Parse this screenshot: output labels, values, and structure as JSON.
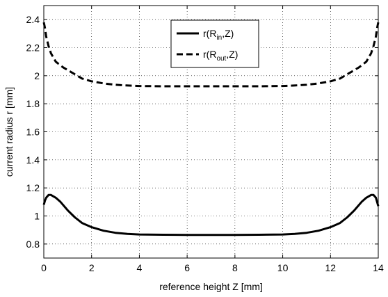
{
  "chart_data": {
    "type": "line",
    "title": "",
    "xlabel": "reference height Z [mm]",
    "ylabel": "current radius r [mm]",
    "xlim": [
      0,
      14
    ],
    "ylim": [
      0.7,
      2.5
    ],
    "xticks": [
      0,
      2,
      4,
      6,
      8,
      10,
      12,
      14
    ],
    "xtick_labels": [
      "0",
      "2",
      "4",
      "6",
      "8",
      "10",
      "12",
      "14"
    ],
    "yticks": [
      0.8,
      1.0,
      1.2,
      1.4,
      1.6,
      1.8,
      2.0,
      2.2,
      2.4
    ],
    "ytick_labels": [
      "0.8",
      "1",
      "1.2",
      "1.4",
      "1.6",
      "1.8",
      "2",
      "2.2",
      "2.4"
    ],
    "grid": true,
    "legend_position": "top-center",
    "series": [
      {
        "name": "r(R_in,Z)",
        "legend_main": "r(R",
        "legend_sub": "in",
        "legend_tail": ",Z)",
        "style": "solid",
        "color": "#000000",
        "x": [
          0,
          0.05,
          0.1,
          0.2,
          0.3,
          0.5,
          0.7,
          1.0,
          1.3,
          1.6,
          2.0,
          2.5,
          3.0,
          3.5,
          4.0,
          5.0,
          6.0,
          7.0,
          8.0,
          9.0,
          10.0,
          10.5,
          11.0,
          11.5,
          12.0,
          12.4,
          12.7,
          13.0,
          13.3,
          13.5,
          13.7,
          13.8,
          13.9,
          13.95,
          14.0
        ],
        "y": [
          1.08,
          1.11,
          1.13,
          1.15,
          1.15,
          1.13,
          1.1,
          1.04,
          0.99,
          0.95,
          0.92,
          0.895,
          0.88,
          0.872,
          0.868,
          0.866,
          0.865,
          0.865,
          0.865,
          0.866,
          0.868,
          0.872,
          0.88,
          0.895,
          0.92,
          0.95,
          0.99,
          1.04,
          1.1,
          1.13,
          1.15,
          1.15,
          1.13,
          1.1,
          1.07
        ]
      },
      {
        "name": "r(R_out,Z)",
        "legend_main": "r(R",
        "legend_sub": "out",
        "legend_tail": ",Z)",
        "style": "dashed",
        "color": "#000000",
        "x": [
          0,
          0.05,
          0.1,
          0.2,
          0.3,
          0.5,
          0.8,
          1.0,
          1.3,
          1.6,
          2.0,
          2.5,
          3.0,
          3.5,
          4.0,
          5.0,
          6.0,
          7.0,
          8.0,
          9.0,
          10.0,
          10.5,
          11.0,
          11.5,
          12.0,
          12.4,
          12.7,
          13.0,
          13.2,
          13.5,
          13.7,
          13.8,
          13.9,
          13.95,
          14.0
        ],
        "y": [
          2.38,
          2.34,
          2.28,
          2.21,
          2.16,
          2.1,
          2.06,
          2.04,
          2.01,
          1.98,
          1.96,
          1.945,
          1.935,
          1.93,
          1.927,
          1.925,
          1.925,
          1.925,
          1.925,
          1.925,
          1.927,
          1.93,
          1.935,
          1.945,
          1.96,
          1.98,
          2.01,
          2.04,
          2.06,
          2.1,
          2.16,
          2.21,
          2.28,
          2.34,
          2.38
        ]
      }
    ]
  }
}
